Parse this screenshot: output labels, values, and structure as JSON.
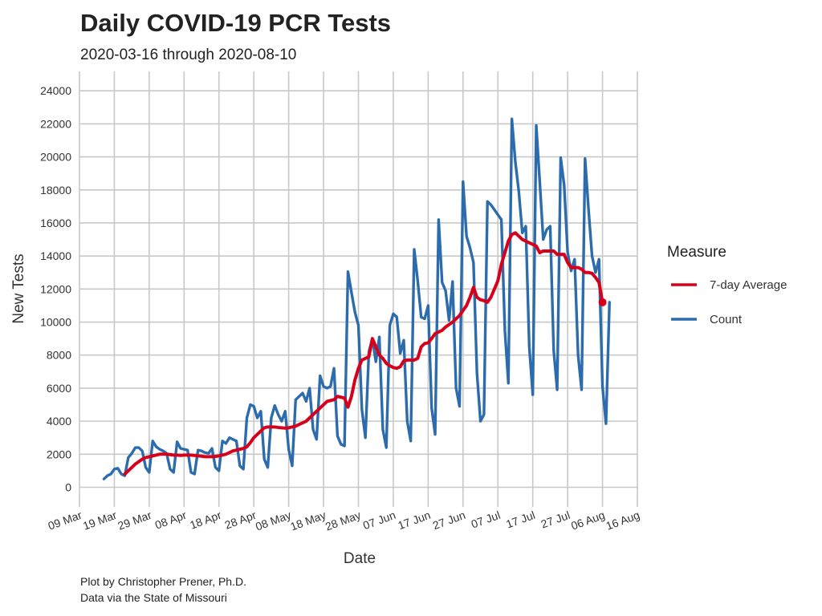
{
  "chart_data": {
    "type": "line",
    "title": "Daily COVID-19 PCR Tests",
    "subtitle": "2020-03-16 through 2020-08-10",
    "xlabel": "Date",
    "ylabel": "New Tests",
    "caption_lines": [
      "Plot by Christopher Prener, Ph.D.",
      "Data via the State of Missouri"
    ],
    "legend_title": "Measure",
    "legend_position": "right",
    "grid": true,
    "xlim": [
      "2020-03-09",
      "2020-08-16"
    ],
    "ylim": [
      0,
      24000
    ],
    "x_ticks": [
      "2020-03-09",
      "2020-03-19",
      "2020-03-29",
      "2020-04-08",
      "2020-04-18",
      "2020-04-28",
      "2020-05-08",
      "2020-05-18",
      "2020-05-28",
      "2020-06-07",
      "2020-06-17",
      "2020-06-27",
      "2020-07-07",
      "2020-07-17",
      "2020-07-27",
      "2020-08-06",
      "2020-08-16"
    ],
    "x_tick_labels": [
      "09 Mar",
      "19 Mar",
      "29 Mar",
      "08 Apr",
      "18 Apr",
      "28 Apr",
      "08 May",
      "18 May",
      "28 May",
      "07 Jun",
      "17 Jun",
      "27 Jun",
      "07 Jul",
      "17 Jul",
      "27 Jul",
      "06 Aug",
      "16 Aug"
    ],
    "y_ticks": [
      0,
      2000,
      4000,
      6000,
      8000,
      10000,
      12000,
      14000,
      16000,
      18000,
      20000,
      22000,
      24000
    ],
    "y_tick_labels": [
      "0",
      "2000",
      "4000",
      "6000",
      "8000",
      "10000",
      "12000",
      "14000",
      "16000",
      "18000",
      "20000",
      "22000",
      "24000"
    ],
    "start_date": "2020-03-16",
    "series": [
      {
        "name": "7-day Average",
        "color": "#d7001b",
        "values": [
          null,
          null,
          null,
          null,
          null,
          null,
          800,
          1000,
          1200,
          1400,
          1550,
          1700,
          1800,
          1850,
          1900,
          1950,
          2000,
          2000,
          2000,
          1980,
          1950,
          1950,
          1930,
          1950,
          1950,
          1950,
          1930,
          1900,
          1880,
          1850,
          1850,
          1850,
          1870,
          1900,
          1950,
          2000,
          2100,
          2200,
          2250,
          2300,
          2350,
          2450,
          2700,
          3000,
          3200,
          3400,
          3600,
          3650,
          3650,
          3650,
          3620,
          3600,
          3580,
          3600,
          3650,
          3700,
          3800,
          3900,
          4000,
          4200,
          4400,
          4600,
          4800,
          5000,
          5200,
          5250,
          5300,
          5500,
          5450,
          5400,
          4850,
          5500,
          6500,
          7200,
          7700,
          7800,
          7900,
          9000,
          8500,
          8000,
          7800,
          7500,
          7350,
          7250,
          7200,
          7300,
          7650,
          7700,
          7700,
          7700,
          7800,
          8500,
          8700,
          8750,
          9000,
          9300,
          9400,
          9500,
          9700,
          9850,
          10000,
          10200,
          10400,
          10700,
          11000,
          11500,
          12100,
          11500,
          11350,
          11300,
          11200,
          11500,
          12000,
          12500,
          13500,
          14200,
          14900,
          15300,
          15400,
          15200,
          15000,
          14900,
          14800,
          14700,
          14600,
          14200,
          14300,
          14300,
          14300,
          14300,
          14100,
          14100,
          14100,
          13600,
          13300,
          13300,
          13300,
          13200,
          13000,
          13000,
          12950,
          12700,
          12400,
          11200
        ]
      },
      {
        "name": "Count",
        "color": "#2d6cac",
        "values": [
          500,
          700,
          800,
          1100,
          1150,
          800,
          700,
          1800,
          2050,
          2400,
          2400,
          2200,
          1200,
          900,
          2800,
          2450,
          2300,
          2200,
          2050,
          1100,
          900,
          2750,
          2350,
          2300,
          2250,
          900,
          800,
          2250,
          2200,
          2100,
          2050,
          2350,
          1200,
          1000,
          2800,
          2650,
          3000,
          2900,
          2800,
          1300,
          1100,
          4200,
          5000,
          4900,
          4200,
          4600,
          1700,
          1200,
          4200,
          4950,
          4400,
          4000,
          4600,
          2300,
          1300,
          5300,
          5500,
          5700,
          5200,
          6000,
          3500,
          2900,
          6750,
          6100,
          6000,
          6100,
          7200,
          3100,
          2600,
          2500,
          13050,
          11800,
          10600,
          9800,
          4700,
          3000,
          8200,
          9000,
          7600,
          9100,
          3500,
          2400,
          9800,
          10500,
          10300,
          8100,
          8900,
          4000,
          2800,
          14400,
          12500,
          10300,
          10200,
          11000,
          4800,
          3200,
          16200,
          12400,
          11900,
          10100,
          12450,
          6000,
          4900,
          18500,
          15200,
          14500,
          13600,
          6900,
          4000,
          4400,
          17300,
          17100,
          16800,
          16500,
          16200,
          9500,
          6300,
          22300,
          19700,
          17900,
          15400,
          15800,
          8500,
          5600,
          21900,
          18500,
          15000,
          15600,
          15800,
          8300,
          5900,
          19950,
          18300,
          14200,
          13100,
          13800,
          8000,
          5900,
          19900,
          16800,
          14000,
          13000,
          13800,
          6100,
          3850,
          11200
        ]
      }
    ]
  }
}
